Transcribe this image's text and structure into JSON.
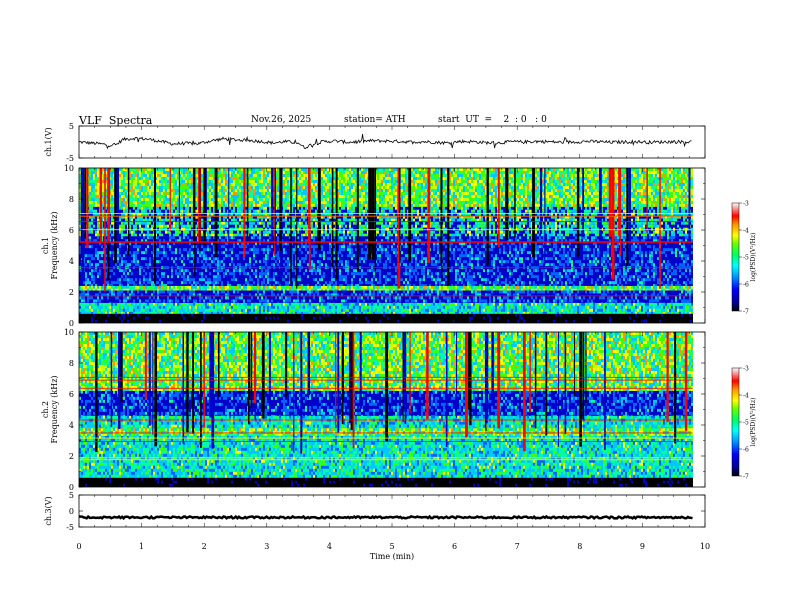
{
  "header": {
    "title": "VLF  Spectra",
    "date": "Nov.26, 2025",
    "station": "station= ATH",
    "start_ut": "start  UT  =    2  : 0   : 0"
  },
  "chart_data": [
    {
      "id": "ch1-waveform",
      "type": "line",
      "ylabel": "ch.1(V)",
      "ylim": [
        -5,
        5
      ],
      "yticks": [
        "5",
        "-5"
      ],
      "x": [
        0.0,
        0.3,
        0.5,
        0.6,
        0.7,
        0.9,
        1.1,
        1.3,
        1.5,
        1.7,
        1.9,
        2.1,
        2.3,
        2.5,
        2.7,
        2.9,
        3.1,
        3.3,
        3.5,
        3.6,
        3.7,
        3.9,
        4.1,
        4.3,
        4.5,
        4.7,
        4.9,
        5.1,
        5.3,
        5.5,
        5.7,
        5.9,
        6.1,
        6.3,
        6.5,
        6.7,
        6.9,
        7.1,
        7.3,
        7.5,
        7.7,
        7.9,
        8.1,
        8.3,
        8.5,
        8.7,
        8.9,
        9.1,
        9.3,
        9.5,
        9.8
      ],
      "y": [
        0.0,
        -0.5,
        -1.0,
        -0.8,
        0.8,
        1.2,
        0.9,
        0.2,
        -0.6,
        -0.4,
        -0.5,
        0.3,
        1.0,
        0.7,
        0.5,
        0.2,
        -0.3,
        0.1,
        -0.2,
        -1.8,
        -0.9,
        0.1,
        0.3,
        -0.1,
        0.2,
        0.4,
        0.3,
        0.2,
        0.0,
        0.1,
        -0.1,
        -0.3,
        0.2,
        0.1,
        -0.2,
        -0.3,
        0.1,
        0.0,
        0.2,
        0.1,
        -0.1,
        0.0,
        0.2,
        0.1,
        -0.1,
        0.0,
        0.1,
        -0.1,
        0.0,
        0.1,
        0.0
      ]
    },
    {
      "id": "ch1-spectrogram",
      "type": "heatmap",
      "ylabel": "ch.1\nFrequency  (kHz)",
      "yticks": [
        "0",
        "2",
        "4",
        "6",
        "8",
        "10"
      ],
      "ylim": [
        0,
        10
      ],
      "xlim": [
        0,
        9.8
      ],
      "colorbar": {
        "label": "log(PSD)(V²/Hz)",
        "range": [
          -7,
          -3
        ],
        "ticks": [
          "-3",
          "-4",
          "-5",
          "-6",
          "-7"
        ]
      },
      "bands": [
        {
          "from": 0.0,
          "to": 0.6,
          "kind": "black"
        },
        {
          "from": 0.6,
          "to": 1.3,
          "kind": "cyan"
        },
        {
          "from": 1.3,
          "to": 2.1,
          "kind": "blue"
        },
        {
          "from": 2.1,
          "to": 2.4,
          "kind": "green"
        },
        {
          "from": 2.4,
          "to": 5.6,
          "kind": "blue"
        },
        {
          "from": 5.6,
          "to": 7.5,
          "kind": "mixed"
        },
        {
          "from": 7.5,
          "to": 10.0,
          "kind": "hot"
        }
      ]
    },
    {
      "id": "ch2-spectrogram",
      "type": "heatmap",
      "ylabel": "ch.2\nFrequency  (kHz)",
      "yticks": [
        "0",
        "2",
        "4",
        "6",
        "8",
        "10"
      ],
      "ylim": [
        0,
        10
      ],
      "xlim": [
        0,
        9.8
      ],
      "colorbar": {
        "label": "log(PSD)(V²/Hz)",
        "range": [
          -7,
          -3
        ],
        "ticks": [
          "-3",
          "-4",
          "-5",
          "-6",
          "-7"
        ]
      },
      "bands": [
        {
          "from": 0.0,
          "to": 0.6,
          "kind": "black"
        },
        {
          "from": 0.6,
          "to": 3.3,
          "kind": "cyan"
        },
        {
          "from": 3.3,
          "to": 3.8,
          "kind": "hot"
        },
        {
          "from": 3.8,
          "to": 4.6,
          "kind": "cyan"
        },
        {
          "from": 4.6,
          "to": 6.2,
          "kind": "blue"
        },
        {
          "from": 6.2,
          "to": 10.0,
          "kind": "hot"
        }
      ]
    },
    {
      "id": "ch3-waveform",
      "type": "line",
      "ylabel": "ch.3(V)",
      "ylim": [
        -5,
        5
      ],
      "yticks": [
        "5",
        "0",
        "-5"
      ],
      "x": [
        0.0,
        9.8
      ],
      "y": [
        -2.0,
        -2.0
      ]
    }
  ],
  "xaxis": {
    "label": "Time  (min)",
    "ticks": [
      "0",
      "1",
      "2",
      "3",
      "4",
      "5",
      "6",
      "7",
      "8",
      "9",
      "10"
    ],
    "xlim": [
      0,
      10
    ]
  },
  "colors": {
    "colormap": [
      "#000000",
      "#0000c8",
      "#0064ff",
      "#00c8ff",
      "#00ffa0",
      "#40ff00",
      "#c8ff00",
      "#ffff00",
      "#ff9600",
      "#ff0000",
      "#ffffff"
    ]
  }
}
